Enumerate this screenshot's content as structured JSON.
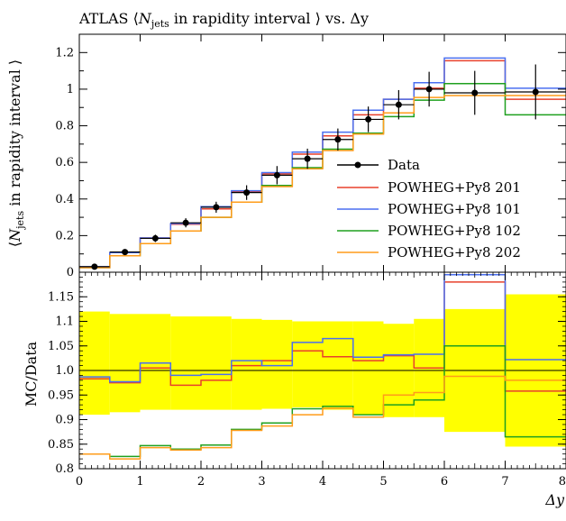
{
  "chart_data": [
    {
      "panel": "main",
      "type": "line",
      "title": "ATLAS ⟨N_jets in rapidity interval ⟩ vs. Δy",
      "title_prefix": "ATLAS ⟨",
      "title_var": "N",
      "title_sub": "jets",
      "title_suffix": " in rapidity interval ⟩ vs. Δy",
      "ylabel": "⟨N_jets in rapidity interval ⟩",
      "ylabel_prefix": "⟨",
      "ylabel_var": "N",
      "ylabel_sub": "jets",
      "ylabel_suffix": " in rapidity interval ⟩",
      "xlim": [
        0,
        8
      ],
      "ylim": [
        0,
        1.3
      ],
      "yticks": [
        {
          "value": 0,
          "label": "0"
        },
        {
          "value": 0.2,
          "label": "0.2"
        },
        {
          "value": 0.4,
          "label": "0.4"
        },
        {
          "value": 0.6,
          "label": "0.6"
        },
        {
          "value": 0.8,
          "label": "0.8"
        },
        {
          "value": 1.0,
          "label": "1"
        },
        {
          "value": 1.2,
          "label": "1.2"
        }
      ],
      "x_edges": [
        0,
        0.5,
        1,
        1.5,
        2,
        2.5,
        3,
        3.5,
        4,
        4.5,
        5,
        5.5,
        6,
        7,
        8
      ],
      "data": {
        "name": "Data",
        "x": [
          0.25,
          0.75,
          1.25,
          1.75,
          2.25,
          2.75,
          3.25,
          3.75,
          4.25,
          4.75,
          5.25,
          5.75,
          6.5,
          7.5
        ],
        "y": [
          0.03,
          0.11,
          0.185,
          0.27,
          0.355,
          0.435,
          0.53,
          0.62,
          0.725,
          0.835,
          0.915,
          1.0,
          0.98,
          0.985
        ],
        "err": [
          0.01,
          0.015,
          0.02,
          0.025,
          0.03,
          0.04,
          0.05,
          0.055,
          0.06,
          0.07,
          0.08,
          0.095,
          0.12,
          0.15
        ]
      },
      "legend": {
        "position": "center-right"
      },
      "series": [
        {
          "name": "POWHEG+Py8 201",
          "color": "#e8412c",
          "values": [
            0.025,
            0.107,
            0.187,
            0.262,
            0.346,
            0.439,
            0.537,
            0.645,
            0.745,
            0.86,
            0.945,
            1.005,
            1.155,
            0.945
          ]
        },
        {
          "name": "POWHEG+Py8 101",
          "color": "#4a6ff0",
          "values": [
            0.03,
            0.107,
            0.187,
            0.266,
            0.358,
            0.445,
            0.544,
            0.656,
            0.765,
            0.885,
            0.945,
            1.035,
            1.17,
            1.005
          ]
        },
        {
          "name": "POWHEG+Py8 102",
          "color": "#1fa01f",
          "values": [
            0.025,
            0.09,
            0.156,
            0.225,
            0.3,
            0.383,
            0.474,
            0.571,
            0.672,
            0.76,
            0.85,
            0.94,
            1.03,
            0.86
          ]
        },
        {
          "name": "POWHEG+Py8 202",
          "color": "#ff9c1a",
          "values": [
            0.025,
            0.09,
            0.156,
            0.225,
            0.3,
            0.383,
            0.468,
            0.565,
            0.665,
            0.755,
            0.87,
            0.955,
            0.965,
            0.965
          ]
        }
      ]
    },
    {
      "panel": "ratio",
      "type": "line",
      "ylabel": "MC/Data",
      "xlabel": "Δy",
      "xlim": [
        0,
        8
      ],
      "ylim": [
        0.8,
        1.2
      ],
      "xticks": [
        {
          "value": 0,
          "label": "0"
        },
        {
          "value": 1,
          "label": "1"
        },
        {
          "value": 2,
          "label": "2"
        },
        {
          "value": 3,
          "label": "3"
        },
        {
          "value": 4,
          "label": "4"
        },
        {
          "value": 5,
          "label": "5"
        },
        {
          "value": 6,
          "label": "6"
        },
        {
          "value": 7,
          "label": "7"
        },
        {
          "value": 8,
          "label": "8"
        }
      ],
      "yticks": [
        {
          "value": 0.8,
          "label": "0.8"
        },
        {
          "value": 0.85,
          "label": "0.85"
        },
        {
          "value": 0.9,
          "label": "0.9"
        },
        {
          "value": 0.95,
          "label": "0.95"
        },
        {
          "value": 1.0,
          "label": "1.0"
        },
        {
          "value": 1.05,
          "label": "1.05"
        },
        {
          "value": 1.1,
          "label": "1.1"
        },
        {
          "value": 1.15,
          "label": "1.15"
        }
      ],
      "x_edges": [
        0,
        0.5,
        1,
        1.5,
        2,
        2.5,
        3,
        3.5,
        4,
        4.5,
        5,
        5.5,
        6,
        7,
        8
      ],
      "band": {
        "color": "#ffff00",
        "lower": [
          0.91,
          0.915,
          0.92,
          0.92,
          0.92,
          0.92,
          0.922,
          0.925,
          0.92,
          0.91,
          0.905,
          0.905,
          0.875,
          0.845
        ],
        "upper": [
          1.12,
          1.115,
          1.115,
          1.11,
          1.11,
          1.105,
          1.103,
          1.1,
          1.1,
          1.1,
          1.095,
          1.105,
          1.125,
          1.155
        ]
      },
      "series": [
        {
          "name": "POWHEG+Py8 201",
          "color": "#e8412c",
          "values": [
            0.983,
            0.975,
            1.005,
            0.97,
            0.98,
            1.01,
            1.02,
            1.04,
            1.028,
            1.02,
            1.03,
            1.005,
            1.18,
            0.958
          ]
        },
        {
          "name": "POWHEG+Py8 101",
          "color": "#4a6ff0",
          "values": [
            0.987,
            0.977,
            1.015,
            0.99,
            0.992,
            1.02,
            1.01,
            1.057,
            1.065,
            1.027,
            1.032,
            1.033,
            1.195,
            1.022
          ]
        },
        {
          "name": "POWHEG+Py8 102",
          "color": "#1fa01f",
          "values": [
            0.83,
            0.825,
            0.847,
            0.84,
            0.848,
            0.88,
            0.893,
            0.922,
            0.927,
            0.91,
            0.93,
            0.94,
            1.05,
            0.865
          ]
        },
        {
          "name": "POWHEG+Py8 202",
          "color": "#ff9c1a",
          "values": [
            0.83,
            0.82,
            0.843,
            0.838,
            0.843,
            0.878,
            0.887,
            0.91,
            0.923,
            0.905,
            0.95,
            0.955,
            0.988,
            0.98
          ]
        }
      ]
    }
  ]
}
